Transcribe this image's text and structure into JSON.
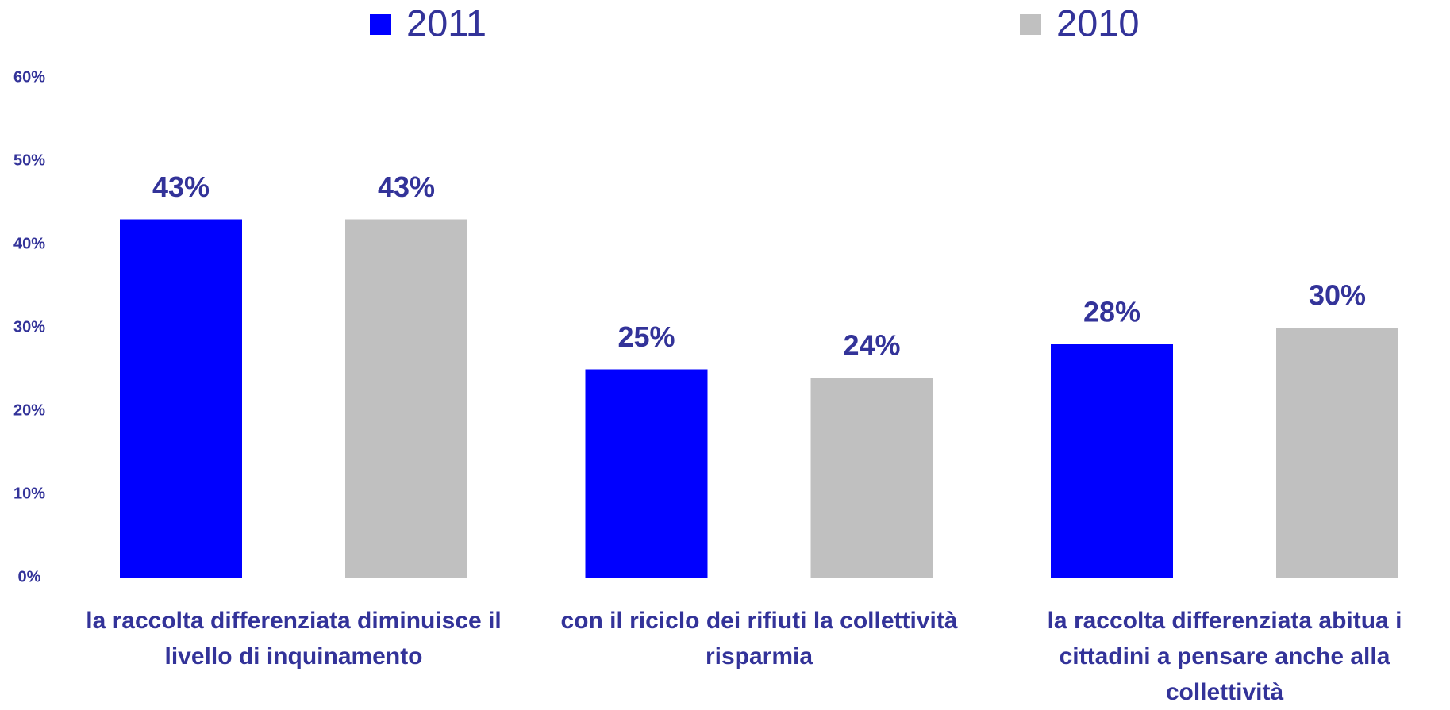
{
  "chart_data": {
    "type": "bar",
    "categories": [
      "la raccolta differenziata diminuisce il livello di inquinamento",
      "con il riciclo dei rifiuti la collettività risparmia",
      "la raccolta differenziata abitua i cittadini a pensare anche alla collettività"
    ],
    "series": [
      {
        "name": "2011",
        "color": "#0000ff",
        "values": [
          43,
          25,
          28
        ],
        "value_labels": [
          "43%",
          "25%",
          "28%"
        ]
      },
      {
        "name": "2010",
        "color": "#c0c0c0",
        "values": [
          43,
          24,
          30
        ],
        "value_labels": [
          "43%",
          "24%",
          "30%"
        ]
      }
    ],
    "ylim": [
      0,
      60
    ],
    "yticks": [
      {
        "value": 0,
        "label": "0%"
      },
      {
        "value": 10,
        "label": "10%"
      },
      {
        "value": 20,
        "label": "20%"
      },
      {
        "value": 30,
        "label": "30%"
      },
      {
        "value": 40,
        "label": "40%"
      },
      {
        "value": 50,
        "label": "50%"
      },
      {
        "value": 60,
        "label": "60%"
      }
    ],
    "grid": false,
    "legend": "top"
  }
}
